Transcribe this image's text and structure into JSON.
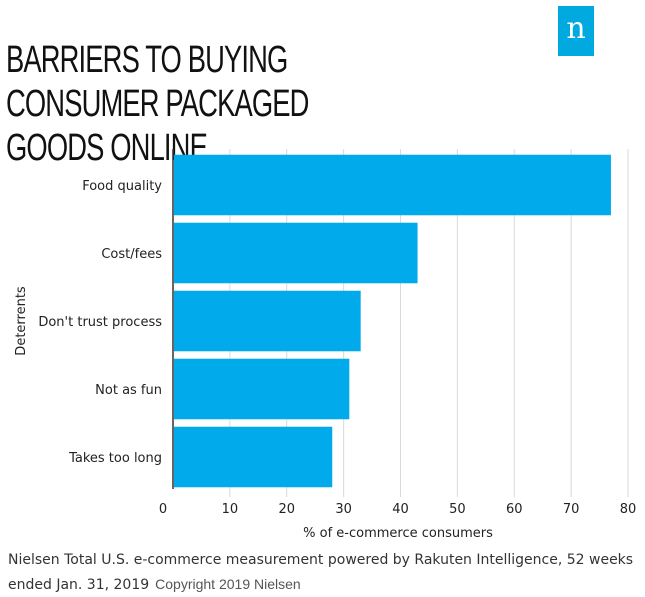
{
  "header": {
    "title": "Barriers to buying consumer packaged goods online"
  },
  "logo": {
    "letter": "n",
    "color": "#00a9e0"
  },
  "chart_data": {
    "type": "bar",
    "orientation": "horizontal",
    "title": "Barriers to buying consumer packaged goods online",
    "categories": [
      "Food quality",
      "Cost/fees",
      "Don't trust process",
      "Not as fun",
      "Takes too long"
    ],
    "values": [
      77,
      43,
      33,
      31,
      28
    ],
    "xlabel": "% of e-commerce consumers",
    "ylabel": "Deterrents",
    "xlim": [
      0,
      80
    ],
    "xticks": [
      "0",
      "10",
      "20",
      "30",
      "40",
      "50",
      "60",
      "70",
      "80"
    ],
    "grid": true,
    "bar_color": "#00aaeb"
  },
  "footer": {
    "source": "Nielsen Total U.S. e-commerce measurement powered by Rakuten Intelligence, 52 weeks ended Jan. 31, 2019",
    "copyright": "Copyright 2019 Nielsen"
  }
}
